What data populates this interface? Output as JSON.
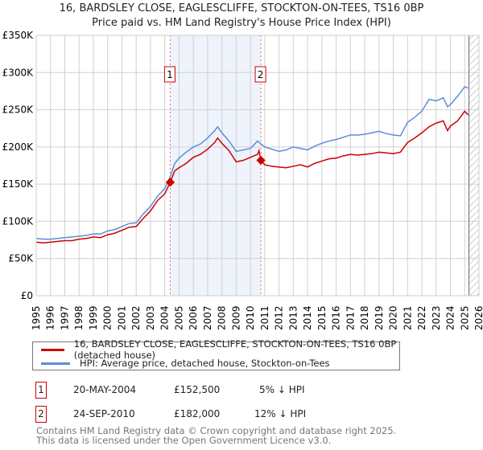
{
  "title": "16, BARDSLEY CLOSE, EAGLESCLIFFE, STOCKTON-ON-TEES, TS16 0BP",
  "subtitle": "Price paid vs. HM Land Registry's House Price Index (HPI)",
  "chart_data": {
    "type": "line",
    "ylim": [
      0,
      350000
    ],
    "xlim": [
      1995,
      2026
    ],
    "yticks": [
      {
        "v": 0,
        "label": "£0"
      },
      {
        "v": 50000,
        "label": "£50K"
      },
      {
        "v": 100000,
        "label": "£100K"
      },
      {
        "v": 150000,
        "label": "£150K"
      },
      {
        "v": 200000,
        "label": "£200K"
      },
      {
        "v": 250000,
        "label": "£250K"
      },
      {
        "v": 300000,
        "label": "£300K"
      },
      {
        "v": 350000,
        "label": "£350K"
      }
    ],
    "xticks": [
      "1995",
      "1996",
      "1997",
      "1998",
      "1999",
      "2000",
      "2001",
      "2002",
      "2003",
      "2004",
      "2005",
      "2006",
      "2007",
      "2008",
      "2009",
      "2010",
      "2011",
      "2012",
      "2013",
      "2014",
      "2015",
      "2016",
      "2017",
      "2018",
      "2019",
      "2020",
      "2021",
      "2022",
      "2023",
      "2024",
      "2025",
      "2026"
    ],
    "grid": true,
    "shaded_range": [
      2004.38,
      2010.73
    ],
    "forecast_from": 2025.3,
    "series": [
      {
        "name": "16, BARDSLEY CLOSE, EAGLESCLIFFE, STOCKTON-ON-TEES, TS16 0BP (detached house)",
        "color": "#cc0000",
        "x": [
          1995,
          1995.5,
          1996,
          1996.5,
          1997,
          1997.5,
          1998,
          1998.5,
          1999,
          1999.5,
          2000,
          2000.5,
          2001,
          2001.5,
          2002,
          2002.5,
          2003,
          2003.5,
          2004,
          2004.38,
          2004.7,
          2005,
          2005.5,
          2006,
          2006.5,
          2007,
          2007.5,
          2007.7,
          2008,
          2008.5,
          2009,
          2009.5,
          2010,
          2010.5,
          2010.6,
          2010.73,
          2011,
          2011.5,
          2012,
          2012.5,
          2013,
          2013.5,
          2014,
          2014.5,
          2015,
          2015.5,
          2016,
          2016.5,
          2017,
          2017.5,
          2018,
          2018.5,
          2019,
          2019.5,
          2020,
          2020.5,
          2021,
          2021.5,
          2022,
          2022.5,
          2023,
          2023.5,
          2023.8,
          2024,
          2024.5,
          2025,
          2025.25
        ],
        "y": [
          72000,
          71000,
          72000,
          73000,
          74000,
          74000,
          76000,
          77000,
          79000,
          78000,
          82000,
          84000,
          88000,
          92000,
          93000,
          104000,
          114000,
          128000,
          137000,
          152500,
          168000,
          172000,
          178000,
          186000,
          190000,
          197000,
          206000,
          212000,
          205000,
          195000,
          180000,
          182000,
          186000,
          190000,
          195000,
          182000,
          176000,
          174000,
          173000,
          172000,
          174000,
          176000,
          173000,
          178000,
          181000,
          184000,
          185000,
          188000,
          190000,
          189000,
          190000,
          191000,
          193000,
          192000,
          191000,
          193000,
          206000,
          212000,
          219000,
          227000,
          232000,
          235000,
          222000,
          228000,
          235000,
          248000,
          243000
        ]
      },
      {
        "name": "HPI: Average price, detached house, Stockton-on-Tees",
        "color": "#5b8ed6",
        "x": [
          1995,
          1995.5,
          1996,
          1996.5,
          1997,
          1997.5,
          1998,
          1998.5,
          1999,
          1999.5,
          2000,
          2000.5,
          2001,
          2001.5,
          2002,
          2002.5,
          2003,
          2003.5,
          2004,
          2004.38,
          2004.7,
          2005,
          2005.5,
          2006,
          2006.5,
          2007,
          2007.5,
          2007.7,
          2008,
          2008.5,
          2009,
          2009.5,
          2010,
          2010.5,
          2010.73,
          2011,
          2011.5,
          2012,
          2012.5,
          2013,
          2013.5,
          2014,
          2014.5,
          2015,
          2015.5,
          2016,
          2016.5,
          2017,
          2017.5,
          2018,
          2018.5,
          2019,
          2019.5,
          2020,
          2020.5,
          2021,
          2021.5,
          2022,
          2022.5,
          2023,
          2023.5,
          2023.8,
          2024,
          2024.5,
          2025,
          2025.25
        ],
        "y": [
          77000,
          76000,
          76000,
          77000,
          78000,
          79000,
          80000,
          81000,
          83000,
          83000,
          87000,
          89000,
          93000,
          97000,
          98000,
          110000,
          120000,
          134000,
          144000,
          160000,
          178000,
          185000,
          193000,
          200000,
          204000,
          212000,
          222000,
          227000,
          219000,
          208000,
          194000,
          196000,
          198000,
          208000,
          204000,
          200000,
          197000,
          194000,
          196000,
          200000,
          198000,
          196000,
          201000,
          205000,
          208000,
          210000,
          213000,
          216000,
          216000,
          217000,
          219000,
          221000,
          218000,
          216000,
          215000,
          233000,
          240000,
          248000,
          264000,
          262000,
          266000,
          254000,
          257000,
          268000,
          281000,
          279000
        ]
      }
    ],
    "markers": [
      {
        "label": "1",
        "x": 2004.38,
        "y": 152500
      },
      {
        "label": "2",
        "x": 2010.73,
        "y": 182000
      }
    ]
  },
  "legend": {
    "items": [
      "16, BARDSLEY CLOSE, EAGLESCLIFFE, STOCKTON-ON-TEES, TS16 0BP (detached house)",
      "HPI: Average price, detached house, Stockton-on-Tees"
    ]
  },
  "transactions": [
    {
      "num": "1",
      "date": "20-MAY-2004",
      "price": "£152,500",
      "hpi": "5% ↓ HPI"
    },
    {
      "num": "2",
      "date": "24-SEP-2010",
      "price": "£182,000",
      "hpi": "12% ↓ HPI"
    }
  ],
  "footer": {
    "line1": "Contains HM Land Registry data © Crown copyright and database right 2025.",
    "line2": "This data is licensed under the Open Government Licence v3.0."
  }
}
